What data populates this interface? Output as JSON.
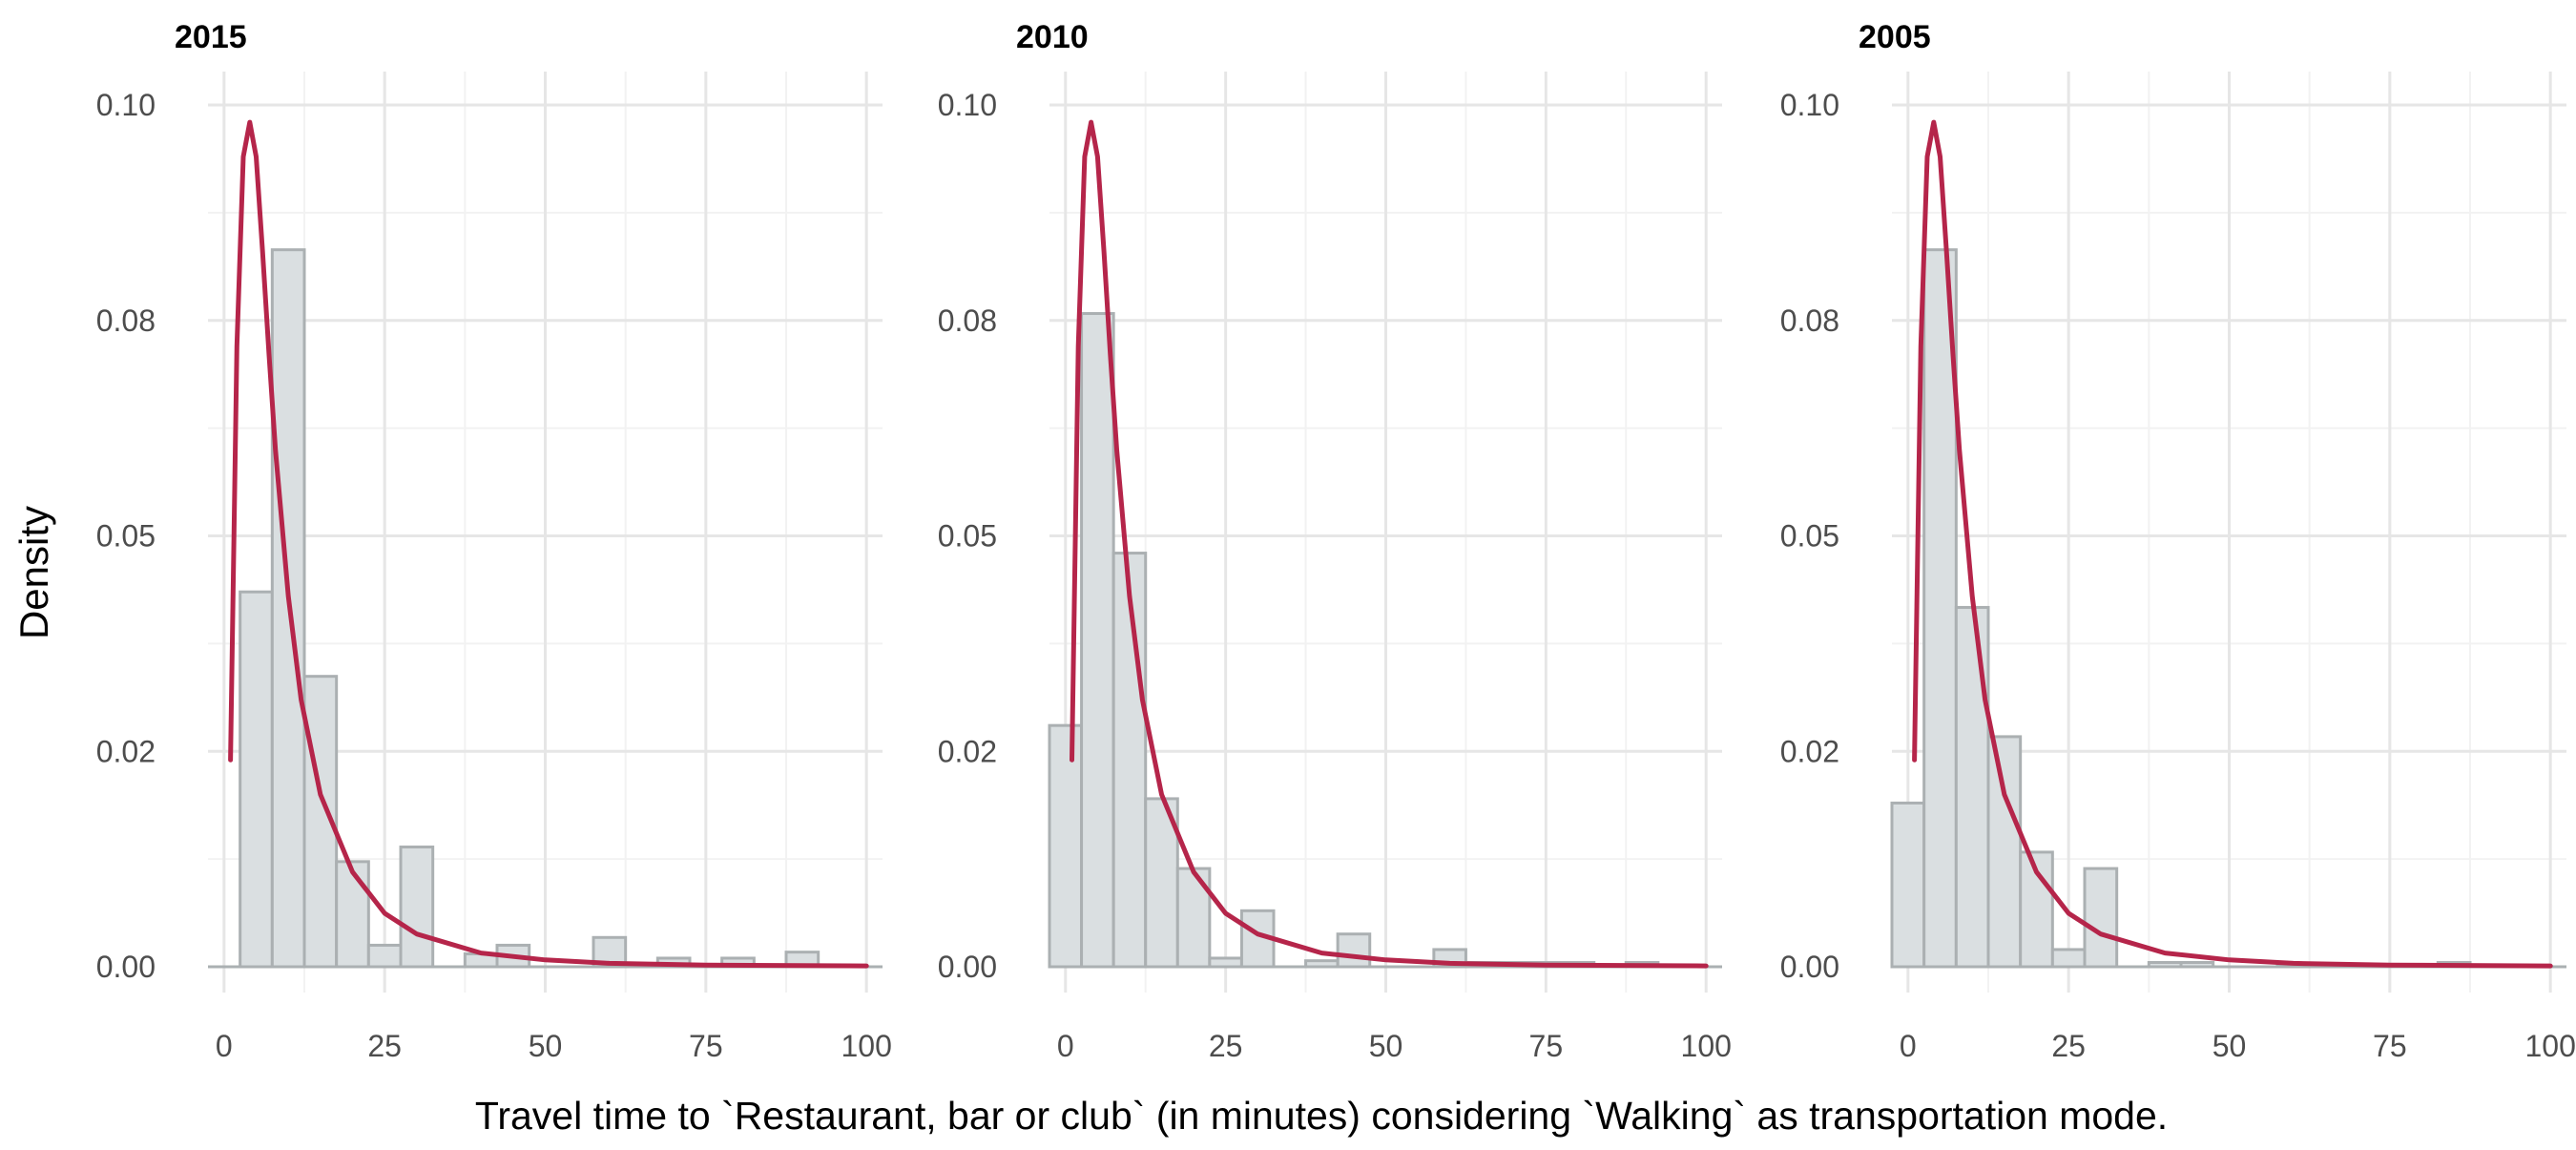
{
  "figure": {
    "ylabel": "Density",
    "xlabel": "Travel time to `Restaurant, bar or club` (in minutes) considering `Walking` as transportation mode."
  },
  "colors": {
    "bar_fill": "#dadfe1",
    "bar_stroke": "#abb0b2",
    "curve": "#b5254a",
    "grid_major": "#e6e6e6",
    "grid_minor": "#f2f2f2",
    "tick_text": "#4d4d4d",
    "title_text": "#000000"
  },
  "chart_data": [
    {
      "type": "bar",
      "title": "2015",
      "xlim": [
        -2.5,
        102.5
      ],
      "ylim": [
        0,
        0.1
      ],
      "x_ticks": [
        0,
        25,
        50,
        75,
        100
      ],
      "x_tick_labels": [
        "0",
        "25",
        "50",
        "75",
        "100"
      ],
      "y_ticks": [
        0,
        0.025,
        0.05,
        0.075,
        0.1
      ],
      "y_tick_labels": [
        "0.00",
        "0.02",
        "0.05",
        "0.08",
        "0.10"
      ],
      "bin_width": 5,
      "bins": [
        {
          "x0": 2.5,
          "x1": 7.5,
          "density": 0.0435
        },
        {
          "x0": 7.5,
          "x1": 12.5,
          "density": 0.0832
        },
        {
          "x0": 12.5,
          "x1": 17.5,
          "density": 0.0337
        },
        {
          "x0": 17.5,
          "x1": 22.5,
          "density": 0.0122
        },
        {
          "x0": 22.5,
          "x1": 27.5,
          "density": 0.0025
        },
        {
          "x0": 27.5,
          "x1": 32.5,
          "density": 0.0139
        },
        {
          "x0": 32.5,
          "x1": 37.5,
          "density": 0.0
        },
        {
          "x0": 37.5,
          "x1": 42.5,
          "density": 0.0015
        },
        {
          "x0": 42.5,
          "x1": 47.5,
          "density": 0.0025
        },
        {
          "x0": 47.5,
          "x1": 52.5,
          "density": 0.0
        },
        {
          "x0": 52.5,
          "x1": 57.5,
          "density": 0.0
        },
        {
          "x0": 57.5,
          "x1": 62.5,
          "density": 0.0034
        },
        {
          "x0": 62.5,
          "x1": 67.5,
          "density": 0.0
        },
        {
          "x0": 67.5,
          "x1": 72.5,
          "density": 0.001
        },
        {
          "x0": 72.5,
          "x1": 77.5,
          "density": 0.0
        },
        {
          "x0": 77.5,
          "x1": 82.5,
          "density": 0.001
        },
        {
          "x0": 82.5,
          "x1": 87.5,
          "density": 0.0
        },
        {
          "x0": 87.5,
          "x1": 92.5,
          "density": 0.0017
        }
      ],
      "curve": [
        {
          "x": 1,
          "y": 0.024
        },
        {
          "x": 2,
          "y": 0.072
        },
        {
          "x": 3,
          "y": 0.094
        },
        {
          "x": 4,
          "y": 0.098
        },
        {
          "x": 5,
          "y": 0.094
        },
        {
          "x": 6,
          "y": 0.083
        },
        {
          "x": 7,
          "y": 0.071
        },
        {
          "x": 8,
          "y": 0.06
        },
        {
          "x": 10,
          "y": 0.043
        },
        {
          "x": 12,
          "y": 0.031
        },
        {
          "x": 15,
          "y": 0.02
        },
        {
          "x": 20,
          "y": 0.011
        },
        {
          "x": 25,
          "y": 0.0062
        },
        {
          "x": 30,
          "y": 0.0038
        },
        {
          "x": 40,
          "y": 0.0016
        },
        {
          "x": 50,
          "y": 0.0008
        },
        {
          "x": 60,
          "y": 0.0004
        },
        {
          "x": 75,
          "y": 0.0002
        },
        {
          "x": 100,
          "y": 0.0001
        }
      ]
    },
    {
      "type": "bar",
      "title": "2010",
      "xlim": [
        -2.5,
        102.5
      ],
      "ylim": [
        0,
        0.1
      ],
      "x_ticks": [
        0,
        25,
        50,
        75,
        100
      ],
      "x_tick_labels": [
        "0",
        "25",
        "50",
        "75",
        "100"
      ],
      "y_ticks": [
        0,
        0.025,
        0.05,
        0.075,
        0.1
      ],
      "y_tick_labels": [
        "0.00",
        "0.02",
        "0.05",
        "0.08",
        "0.10"
      ],
      "bin_width": 5,
      "bins": [
        {
          "x0": -2.5,
          "x1": 2.5,
          "density": 0.028
        },
        {
          "x0": 2.5,
          "x1": 7.5,
          "density": 0.0758
        },
        {
          "x0": 7.5,
          "x1": 12.5,
          "density": 0.048
        },
        {
          "x0": 12.5,
          "x1": 17.5,
          "density": 0.0195
        },
        {
          "x0": 17.5,
          "x1": 22.5,
          "density": 0.0114
        },
        {
          "x0": 22.5,
          "x1": 27.5,
          "density": 0.001
        },
        {
          "x0": 27.5,
          "x1": 32.5,
          "density": 0.0065
        },
        {
          "x0": 32.5,
          "x1": 37.5,
          "density": 0.0
        },
        {
          "x0": 37.5,
          "x1": 42.5,
          "density": 0.0007
        },
        {
          "x0": 42.5,
          "x1": 47.5,
          "density": 0.0038
        },
        {
          "x0": 47.5,
          "x1": 52.5,
          "density": 0.0
        },
        {
          "x0": 52.5,
          "x1": 57.5,
          "density": 0.0
        },
        {
          "x0": 57.5,
          "x1": 62.5,
          "density": 0.002
        },
        {
          "x0": 62.5,
          "x1": 67.5,
          "density": 0.0005
        },
        {
          "x0": 67.5,
          "x1": 72.5,
          "density": 0.0005
        },
        {
          "x0": 72.5,
          "x1": 77.5,
          "density": 0.0005
        },
        {
          "x0": 77.5,
          "x1": 82.5,
          "density": 0.0005
        },
        {
          "x0": 82.5,
          "x1": 87.5,
          "density": 0.0
        },
        {
          "x0": 87.5,
          "x1": 92.5,
          "density": 0.0005
        }
      ],
      "curve": [
        {
          "x": 1,
          "y": 0.024
        },
        {
          "x": 2,
          "y": 0.072
        },
        {
          "x": 3,
          "y": 0.094
        },
        {
          "x": 4,
          "y": 0.098
        },
        {
          "x": 5,
          "y": 0.094
        },
        {
          "x": 6,
          "y": 0.083
        },
        {
          "x": 7,
          "y": 0.071
        },
        {
          "x": 8,
          "y": 0.06
        },
        {
          "x": 10,
          "y": 0.043
        },
        {
          "x": 12,
          "y": 0.031
        },
        {
          "x": 15,
          "y": 0.02
        },
        {
          "x": 20,
          "y": 0.011
        },
        {
          "x": 25,
          "y": 0.0062
        },
        {
          "x": 30,
          "y": 0.0038
        },
        {
          "x": 40,
          "y": 0.0016
        },
        {
          "x": 50,
          "y": 0.0008
        },
        {
          "x": 60,
          "y": 0.0004
        },
        {
          "x": 75,
          "y": 0.0002
        },
        {
          "x": 100,
          "y": 0.0001
        }
      ]
    },
    {
      "type": "bar",
      "title": "2005",
      "xlim": [
        -2.5,
        102.5
      ],
      "ylim": [
        0,
        0.1
      ],
      "x_ticks": [
        0,
        25,
        50,
        75,
        100
      ],
      "x_tick_labels": [
        "0",
        "25",
        "50",
        "75",
        "100"
      ],
      "y_ticks": [
        0,
        0.025,
        0.05,
        0.075,
        0.1
      ],
      "y_tick_labels": [
        "0.00",
        "0.02",
        "0.05",
        "0.08",
        "0.10"
      ],
      "bin_width": 5,
      "bins": [
        {
          "x0": -2.5,
          "x1": 2.5,
          "density": 0.019
        },
        {
          "x0": 2.5,
          "x1": 7.5,
          "density": 0.0832
        },
        {
          "x0": 7.5,
          "x1": 12.5,
          "density": 0.0417
        },
        {
          "x0": 12.5,
          "x1": 17.5,
          "density": 0.0267
        },
        {
          "x0": 17.5,
          "x1": 22.5,
          "density": 0.0133
        },
        {
          "x0": 22.5,
          "x1": 27.5,
          "density": 0.002
        },
        {
          "x0": 27.5,
          "x1": 32.5,
          "density": 0.0114
        },
        {
          "x0": 32.5,
          "x1": 37.5,
          "density": 0.0
        },
        {
          "x0": 37.5,
          "x1": 42.5,
          "density": 0.0005
        },
        {
          "x0": 42.5,
          "x1": 47.5,
          "density": 0.0005
        },
        {
          "x0": 47.5,
          "x1": 52.5,
          "density": 0.0
        },
        {
          "x0": 52.5,
          "x1": 57.5,
          "density": 0.0
        },
        {
          "x0": 57.5,
          "x1": 62.5,
          "density": 0.0003
        },
        {
          "x0": 62.5,
          "x1": 67.5,
          "density": 0.0
        },
        {
          "x0": 67.5,
          "x1": 72.5,
          "density": 0.0
        },
        {
          "x0": 72.5,
          "x1": 77.5,
          "density": 0.0
        },
        {
          "x0": 77.5,
          "x1": 82.5,
          "density": 0.0
        },
        {
          "x0": 82.5,
          "x1": 87.5,
          "density": 0.0005
        }
      ],
      "curve": [
        {
          "x": 1,
          "y": 0.024
        },
        {
          "x": 2,
          "y": 0.072
        },
        {
          "x": 3,
          "y": 0.094
        },
        {
          "x": 4,
          "y": 0.098
        },
        {
          "x": 5,
          "y": 0.094
        },
        {
          "x": 6,
          "y": 0.083
        },
        {
          "x": 7,
          "y": 0.071
        },
        {
          "x": 8,
          "y": 0.06
        },
        {
          "x": 10,
          "y": 0.043
        },
        {
          "x": 12,
          "y": 0.031
        },
        {
          "x": 15,
          "y": 0.02
        },
        {
          "x": 20,
          "y": 0.011
        },
        {
          "x": 25,
          "y": 0.0062
        },
        {
          "x": 30,
          "y": 0.0038
        },
        {
          "x": 40,
          "y": 0.0016
        },
        {
          "x": 50,
          "y": 0.0008
        },
        {
          "x": 60,
          "y": 0.0004
        },
        {
          "x": 75,
          "y": 0.0002
        },
        {
          "x": 100,
          "y": 0.0001
        }
      ]
    }
  ]
}
